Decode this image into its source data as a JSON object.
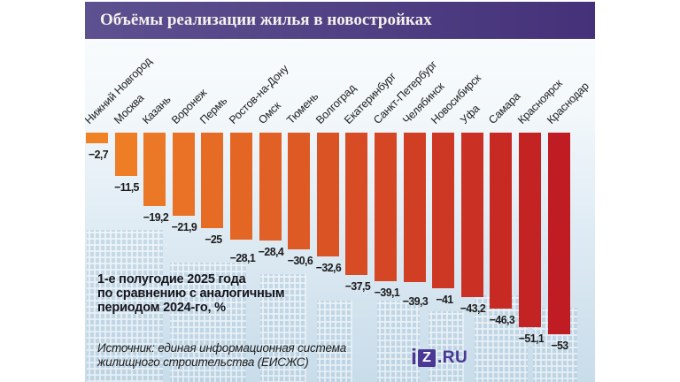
{
  "chart_data": {
    "type": "bar",
    "title": "Объёмы реализации жилья в новостройках",
    "categories": [
      "Нижний Новгород",
      "Москва",
      "Казань",
      "Воронеж",
      "Пермь",
      "Ростов-на-Дону",
      "Омск",
      "Тюмень",
      "Волгоград",
      "Екатеринбург",
      "Санкт-Петербург",
      "Челябинск",
      "Новосибирск",
      "Уфа",
      "Самара",
      "Красноярск",
      "Краснодар"
    ],
    "values": [
      -2.7,
      -11.5,
      -19.2,
      -21.9,
      -25,
      -28.1,
      -28.4,
      -30.6,
      -32.6,
      -37.5,
      -39.1,
      -39.3,
      -41,
      -43.2,
      -46.3,
      -51.1,
      -53
    ],
    "value_labels": [
      "−2,7",
      "−11,5",
      "−19,2",
      "−21,9",
      "−25",
      "−28,1",
      "−28,4",
      "−30,6",
      "−32,6",
      "−37,5",
      "−39,1",
      "−39,3",
      "−41",
      "−43,2",
      "−46,3",
      "−51,1",
      "−53"
    ],
    "note": "1-е полугодие 2025 года\nпо сравнению с аналогичным\nпериодом 2024-го, %",
    "source": "Источник: единая информационная система\nжилищного строительства (ЕИСЖС)",
    "xlabel": "",
    "ylabel": "%",
    "ylim": [
      -55,
      0
    ],
    "grid": false,
    "legend": false,
    "bar_color_start": "#F08226",
    "bar_color_end": "#C01C23"
  },
  "logo": {
    "letter_i": "i",
    "letter_z": "z",
    "tld": ".RU"
  },
  "colors": {
    "header_gradient_start": "#5D5190",
    "header_gradient_end": "#453179",
    "logo_purple": "#4A3894",
    "background_top": "#FCFDFE",
    "background_bottom": "#C8DCEA"
  }
}
